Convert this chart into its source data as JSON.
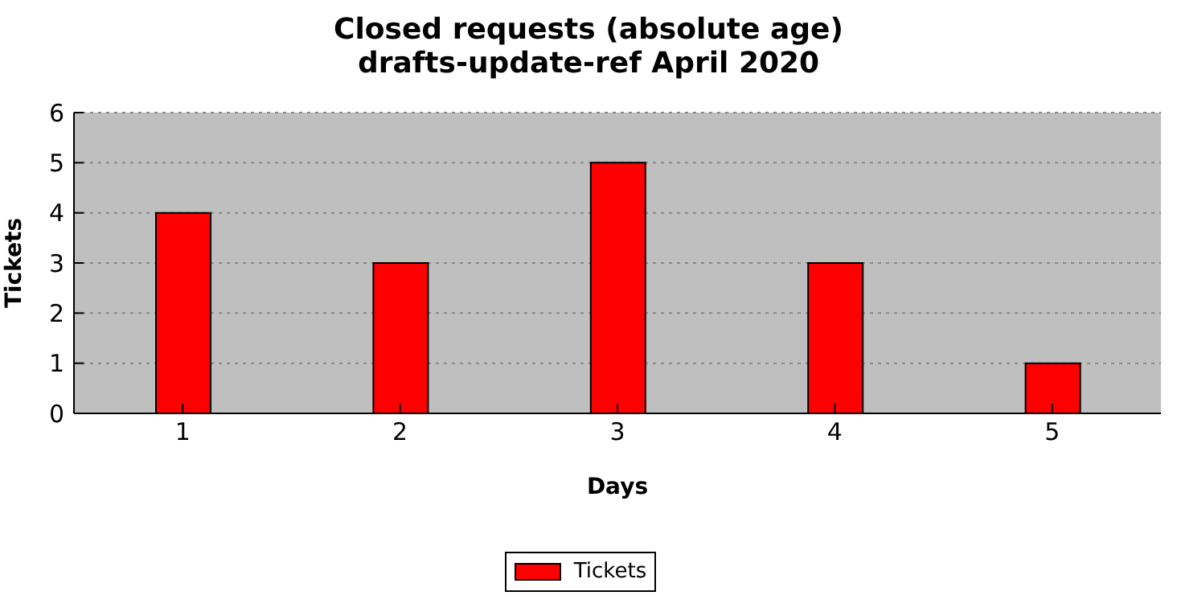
{
  "chart_data": {
    "type": "bar",
    "title": "Closed requests (absolute age)\ndrafts-update-ref April 2020",
    "xlabel": "Days",
    "ylabel": "Tickets",
    "categories": [
      "1",
      "2",
      "3",
      "4",
      "5"
    ],
    "series": [
      {
        "name": "Tickets",
        "color": "#ff0000",
        "values": [
          4,
          3,
          5,
          3,
          1
        ]
      }
    ],
    "ylim": [
      0,
      6
    ],
    "yticks": [
      0,
      1,
      2,
      3,
      4,
      5,
      6
    ],
    "grid": "y",
    "legend": "bottom"
  }
}
